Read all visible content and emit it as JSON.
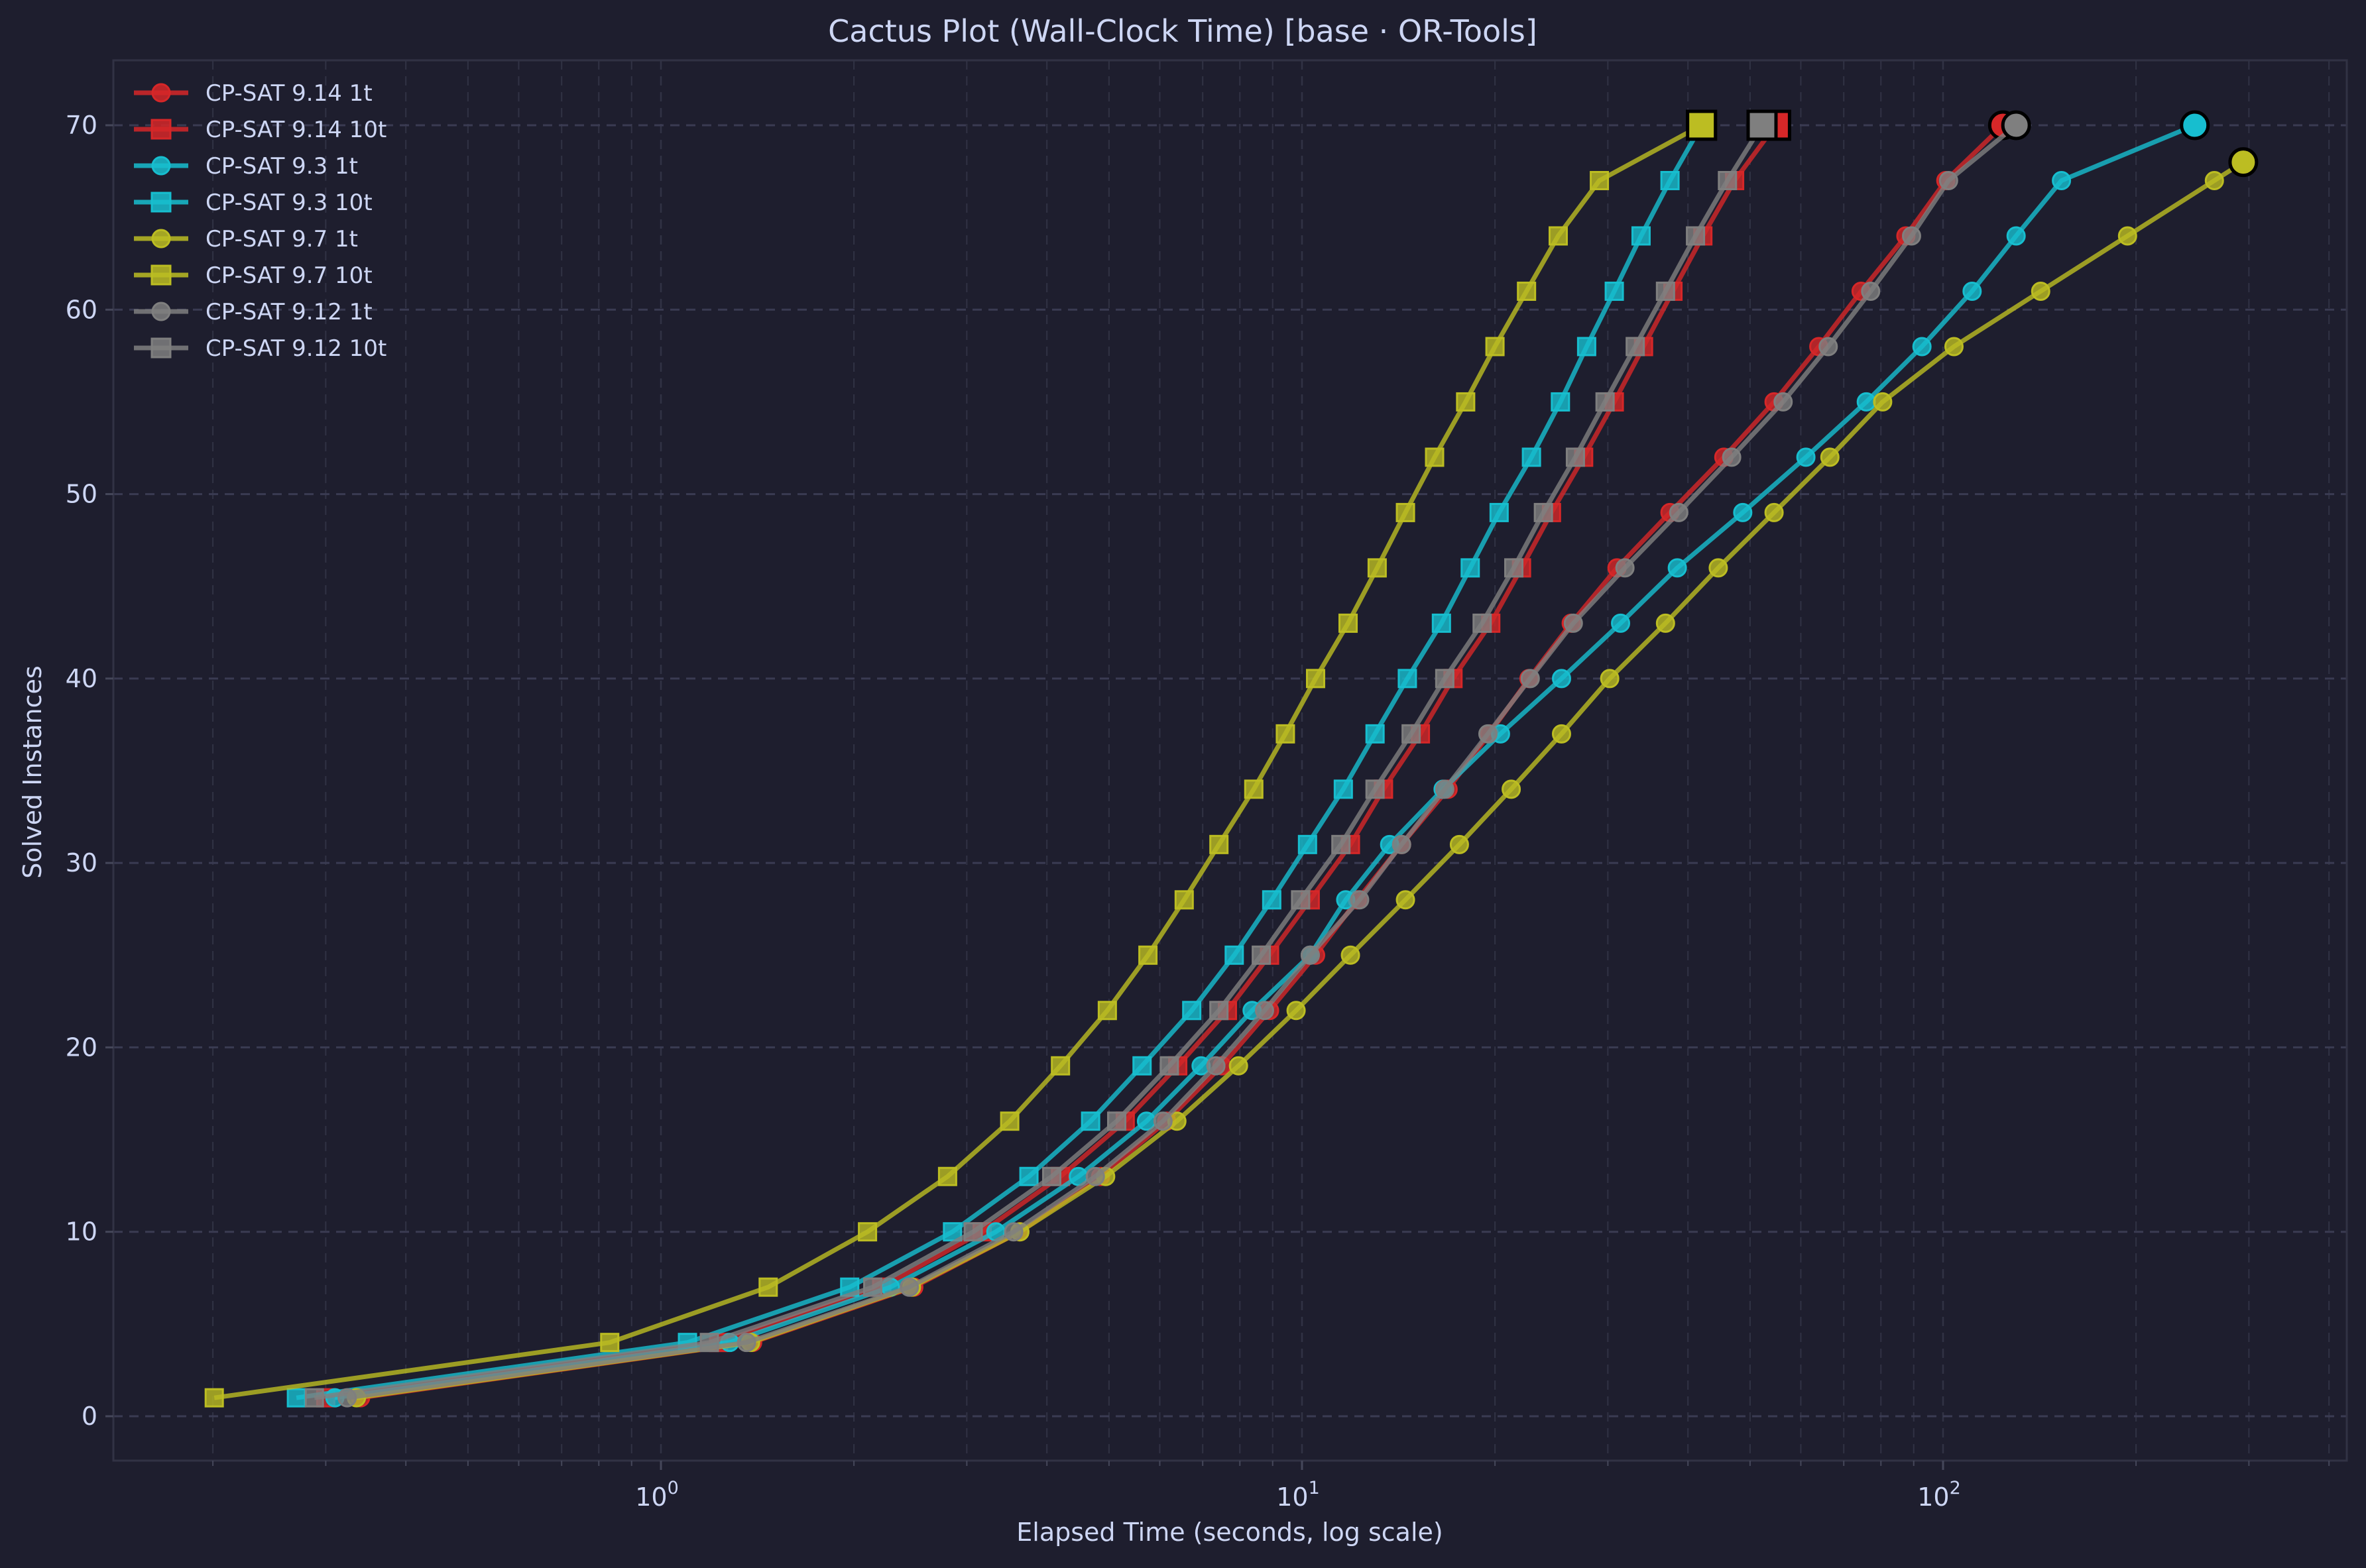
{
  "chart_data": {
    "type": "line",
    "title": "Cactus Plot (Wall-Clock Time) [base · OR-Tools]",
    "xlabel": "Elapsed Time (seconds, log scale)",
    "ylabel": "Solved Instances",
    "xscale": "log",
    "xlim": [
      0.14,
      425
    ],
    "ylim": [
      -2.5,
      73.5
    ],
    "x_ticks": [
      {
        "value": 1,
        "label": "10^0"
      },
      {
        "value": 10,
        "label": "10^1"
      },
      {
        "value": 100,
        "label": "10^2"
      }
    ],
    "y_ticks": [
      0,
      10,
      20,
      30,
      40,
      50,
      60,
      70
    ],
    "grid": true,
    "legend_position": "upper left",
    "background": "#1e1e2e",
    "series": [
      {
        "name": "CP-SAT 9.14 1t",
        "color": "#d62728",
        "marker": "circle",
        "n": [
          1,
          4,
          7,
          10,
          13,
          16,
          19,
          22,
          25,
          28,
          31,
          34,
          37,
          40,
          43,
          46,
          49,
          52,
          55,
          58,
          61,
          64,
          67,
          70
        ],
        "time": [
          0.34,
          1.39,
          2.48,
          3.63,
          4.85,
          6.15,
          7.5,
          8.9,
          10.5,
          12.2,
          14.3,
          16.9,
          19.6,
          22.6,
          26.3,
          31.0,
          37.5,
          45.5,
          54.5,
          64.0,
          74.5,
          87.5,
          101,
          124
        ]
      },
      {
        "name": "CP-SAT 9.14 10t",
        "color": "#d62728",
        "marker": "square",
        "n": [
          1,
          4,
          7,
          10,
          13,
          16,
          19,
          22,
          25,
          28,
          31,
          34,
          37,
          40,
          43,
          46,
          49,
          52,
          55,
          58,
          61,
          64,
          67,
          70
        ],
        "time": [
          0.3,
          1.23,
          2.21,
          3.17,
          4.2,
          5.3,
          6.4,
          7.65,
          8.9,
          10.3,
          11.9,
          13.4,
          15.3,
          17.2,
          19.7,
          22.0,
          24.5,
          27.5,
          30.7,
          34.1,
          37.9,
          42.2,
          47.3,
          54.8
        ]
      },
      {
        "name": "CP-SAT 9.3 1t",
        "color": "#17becf",
        "marker": "circle",
        "n": [
          1,
          4,
          7,
          10,
          13,
          16,
          19,
          22,
          25,
          28,
          31,
          34,
          37,
          40,
          43,
          46,
          49,
          52,
          55,
          58,
          61,
          64,
          67,
          70
        ],
        "time": [
          0.31,
          1.28,
          2.28,
          3.33,
          4.48,
          5.72,
          6.96,
          8.36,
          10.3,
          11.7,
          13.7,
          16.6,
          20.4,
          25.4,
          31.4,
          38.5,
          48.7,
          61.1,
          75.9,
          92.7,
          111,
          130,
          153,
          247
        ]
      },
      {
        "name": "CP-SAT 9.3 10t",
        "color": "#17becf",
        "marker": "square",
        "n": [
          1,
          4,
          7,
          10,
          13,
          16,
          19,
          22,
          25,
          28,
          31,
          34,
          37,
          40,
          43,
          46,
          49,
          52,
          55,
          58,
          61,
          64,
          67,
          70
        ],
        "time": [
          0.27,
          1.1,
          1.97,
          2.85,
          3.75,
          4.68,
          5.63,
          6.73,
          7.84,
          8.97,
          10.2,
          11.6,
          13.0,
          14.6,
          16.5,
          18.3,
          20.3,
          22.8,
          25.3,
          27.8,
          30.7,
          33.8,
          37.5,
          42.0
        ]
      },
      {
        "name": "CP-SAT 9.7 1t",
        "color": "#bcbd22",
        "marker": "circle",
        "n": [
          1,
          4,
          7,
          10,
          13,
          16,
          19,
          22,
          25,
          28,
          31,
          34,
          37,
          40,
          43,
          46,
          49,
          52,
          55,
          58,
          61,
          64,
          67,
          68
        ],
        "time": [
          0.335,
          1.38,
          2.46,
          3.63,
          4.94,
          6.38,
          7.96,
          9.79,
          11.9,
          14.5,
          17.6,
          21.2,
          25.4,
          30.2,
          36.9,
          44.6,
          54.5,
          66.6,
          80.5,
          104,
          142,
          194,
          265,
          294
        ]
      },
      {
        "name": "CP-SAT 9.7 10t",
        "color": "#bcbd22",
        "marker": "square",
        "n": [
          1,
          4,
          7,
          10,
          13,
          16,
          19,
          22,
          25,
          28,
          31,
          34,
          37,
          40,
          43,
          46,
          49,
          52,
          55,
          58,
          61,
          64,
          67,
          70
        ],
        "time": [
          0.201,
          0.832,
          1.47,
          2.1,
          2.8,
          3.5,
          4.2,
          4.97,
          5.75,
          6.55,
          7.42,
          8.41,
          9.42,
          10.5,
          11.8,
          13.1,
          14.5,
          16.1,
          18.0,
          20.0,
          22.4,
          25.1,
          29.1,
          42.0
        ]
      },
      {
        "name": "CP-SAT 9.12 1t",
        "color": "#7f7f7f",
        "marker": "circle",
        "n": [
          1,
          4,
          7,
          10,
          13,
          16,
          19,
          22,
          25,
          28,
          31,
          34,
          37,
          40,
          43,
          46,
          49,
          52,
          55,
          58,
          61,
          64,
          67,
          70
        ],
        "time": [
          0.324,
          1.36,
          2.44,
          3.55,
          4.76,
          6.07,
          7.34,
          8.74,
          10.3,
          12.3,
          14.3,
          16.7,
          19.5,
          22.7,
          26.5,
          31.9,
          38.7,
          46.8,
          56.3,
          66.2,
          77.1,
          89.3,
          102,
          130
        ]
      },
      {
        "name": "CP-SAT 9.12 10t",
        "color": "#7f7f7f",
        "marker": "square",
        "n": [
          1,
          4,
          7,
          10,
          13,
          16,
          19,
          22,
          25,
          28,
          31,
          34,
          37,
          40,
          43,
          46,
          49,
          52,
          55,
          58,
          61,
          64,
          67,
          70
        ],
        "time": [
          0.288,
          1.19,
          2.14,
          3.07,
          4.07,
          5.14,
          6.21,
          7.42,
          8.64,
          9.95,
          11.5,
          13.0,
          14.8,
          16.7,
          19.1,
          21.4,
          23.8,
          26.7,
          29.7,
          33.1,
          36.9,
          41.1,
          46.1,
          52.2
        ]
      }
    ]
  }
}
